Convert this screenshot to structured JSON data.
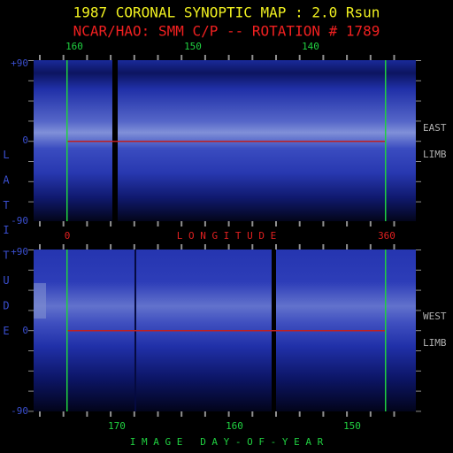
{
  "header": {
    "title": "1987 CORONAL SYNOPTIC MAP : 2.0 Rsun",
    "subtitle": "NCAR/HAO: SMM C/P -- ROTATION # 1789"
  },
  "top_panel": {
    "axis_labels": [
      "160",
      "150",
      "140"
    ],
    "latitude_labels": [
      "+90",
      "0",
      "-90"
    ],
    "side_labels": [
      "EAST",
      "LIMB"
    ]
  },
  "longitude_axis": {
    "start": "0",
    "label": "L O N G I T U D E",
    "end": "360"
  },
  "bottom_panel": {
    "latitude_labels": [
      "+90",
      "0",
      "-90"
    ],
    "axis_labels": [
      "170",
      "160",
      "150"
    ],
    "side_labels": [
      "WEST",
      "LIMB"
    ]
  },
  "latitude_label": "L A T I T U D E",
  "day_axis_label": "I M A G E   D A Y - O F - Y E A R"
}
